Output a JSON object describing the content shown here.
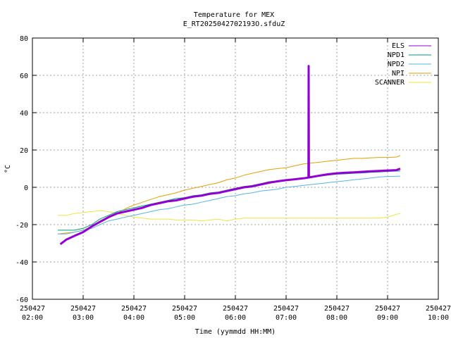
{
  "chart_data": {
    "type": "line",
    "title": "Temperature for MEX",
    "subtitle": "E_RT2025042702193O.sfduZ",
    "xlabel": "Time (yymmdd HH:MM)",
    "ylabel": "°C",
    "xlim": [
      "02:00",
      "10:00"
    ],
    "ylim": [
      -60,
      80
    ],
    "yticks": [
      -60,
      -40,
      -20,
      0,
      20,
      40,
      60,
      80
    ],
    "x_ticks": [
      {
        "hour": 2,
        "date": "250427",
        "time": "02:00"
      },
      {
        "hour": 3,
        "date": "250427",
        "time": "03:00"
      },
      {
        "hour": 4,
        "date": "250427",
        "time": "04:00"
      },
      {
        "hour": 5,
        "date": "250427",
        "time": "05:00"
      },
      {
        "hour": 6,
        "date": "250427",
        "time": "06:00"
      },
      {
        "hour": 7,
        "date": "250427",
        "time": "07:00"
      },
      {
        "hour": 8,
        "date": "250427",
        "time": "08:00"
      },
      {
        "hour": 9,
        "date": "250427",
        "time": "09:00"
      },
      {
        "hour": 10,
        "date": "250427",
        "time": "10:00"
      }
    ],
    "grid": true,
    "legend_position": "top-right",
    "series": [
      {
        "name": "ELS",
        "color": "#9400d3",
        "width": 3,
        "points": [
          [
            2.55,
            -30.5
          ],
          [
            2.67,
            -28
          ],
          [
            2.83,
            -26
          ],
          [
            3.0,
            -24
          ],
          [
            3.17,
            -21
          ],
          [
            3.33,
            -18.5
          ],
          [
            3.5,
            -16
          ],
          [
            3.67,
            -14
          ],
          [
            3.83,
            -13
          ],
          [
            4.0,
            -12
          ],
          [
            4.17,
            -11
          ],
          [
            4.33,
            -9.5
          ],
          [
            4.5,
            -8.5
          ],
          [
            4.67,
            -7.5
          ],
          [
            4.83,
            -7
          ],
          [
            5.0,
            -6
          ],
          [
            5.17,
            -5
          ],
          [
            5.33,
            -4.5
          ],
          [
            5.5,
            -3.5
          ],
          [
            5.67,
            -3
          ],
          [
            5.83,
            -2
          ],
          [
            6.0,
            -1
          ],
          [
            6.17,
            0
          ],
          [
            6.33,
            0.5
          ],
          [
            6.5,
            1.5
          ],
          [
            6.67,
            2.5
          ],
          [
            6.83,
            3.2
          ],
          [
            7.0,
            3.8
          ],
          [
            7.17,
            4.3
          ],
          [
            7.33,
            4.8
          ],
          [
            7.44,
            5.2
          ],
          [
            7.445,
            65
          ],
          [
            7.45,
            5.3
          ],
          [
            7.6,
            6
          ],
          [
            7.83,
            7
          ],
          [
            8.0,
            7.5
          ],
          [
            8.17,
            7.8
          ],
          [
            8.33,
            8
          ],
          [
            8.5,
            8.3
          ],
          [
            8.67,
            8.6
          ],
          [
            8.83,
            8.8
          ],
          [
            9.0,
            9
          ],
          [
            9.17,
            9.2
          ],
          [
            9.25,
            10
          ]
        ]
      },
      {
        "name": "NPD1",
        "color": "#009e73",
        "width": 1,
        "points": [
          [
            2.5,
            -23
          ],
          [
            2.67,
            -23
          ],
          [
            2.83,
            -23
          ],
          [
            3.0,
            -22
          ],
          [
            3.17,
            -20
          ],
          [
            3.33,
            -17
          ],
          [
            3.5,
            -15
          ],
          [
            3.67,
            -13
          ],
          [
            3.83,
            -12
          ],
          [
            4.0,
            -11
          ],
          [
            4.17,
            -10
          ],
          [
            4.33,
            -9
          ],
          [
            4.5,
            -8
          ],
          [
            4.67,
            -7
          ],
          [
            4.83,
            -6
          ],
          [
            5.0,
            -5.5
          ],
          [
            5.17,
            -4.5
          ],
          [
            5.33,
            -4
          ],
          [
            5.5,
            -3
          ],
          [
            5.67,
            -2.5
          ],
          [
            5.83,
            -1.5
          ],
          [
            6.0,
            -0.5
          ],
          [
            6.17,
            0.5
          ],
          [
            6.33,
            1
          ],
          [
            6.5,
            2
          ],
          [
            6.67,
            3
          ],
          [
            6.83,
            3.5
          ],
          [
            7.0,
            4
          ],
          [
            7.17,
            4.5
          ],
          [
            7.33,
            5
          ],
          [
            7.5,
            5.5
          ],
          [
            7.67,
            6
          ],
          [
            7.83,
            6.5
          ],
          [
            8.0,
            7
          ],
          [
            8.17,
            7.2
          ],
          [
            8.33,
            7.5
          ],
          [
            8.5,
            7.7
          ],
          [
            8.67,
            8
          ],
          [
            8.83,
            8.2
          ],
          [
            9.0,
            8.5
          ],
          [
            9.25,
            8.8
          ]
        ]
      },
      {
        "name": "NPD2",
        "color": "#56b4e9",
        "width": 1,
        "points": [
          [
            2.5,
            -25
          ],
          [
            2.67,
            -25
          ],
          [
            2.83,
            -24
          ],
          [
            3.0,
            -23
          ],
          [
            3.17,
            -22
          ],
          [
            3.33,
            -20
          ],
          [
            3.5,
            -18
          ],
          [
            3.67,
            -17
          ],
          [
            3.83,
            -16
          ],
          [
            4.0,
            -15
          ],
          [
            4.17,
            -14
          ],
          [
            4.33,
            -13
          ],
          [
            4.5,
            -12
          ],
          [
            4.67,
            -11.5
          ],
          [
            4.83,
            -10.5
          ],
          [
            5.0,
            -9.5
          ],
          [
            5.17,
            -9
          ],
          [
            5.33,
            -8
          ],
          [
            5.5,
            -7
          ],
          [
            5.67,
            -6
          ],
          [
            5.83,
            -5
          ],
          [
            6.0,
            -4.5
          ],
          [
            6.17,
            -3.5
          ],
          [
            6.33,
            -3
          ],
          [
            6.5,
            -2
          ],
          [
            6.67,
            -1.5
          ],
          [
            6.83,
            -1
          ],
          [
            7.0,
            0
          ],
          [
            7.17,
            0.5
          ],
          [
            7.33,
            1
          ],
          [
            7.5,
            1.5
          ],
          [
            7.67,
            2
          ],
          [
            7.83,
            2.5
          ],
          [
            8.0,
            3
          ],
          [
            8.17,
            3.5
          ],
          [
            8.33,
            4
          ],
          [
            8.5,
            4.5
          ],
          [
            8.67,
            5
          ],
          [
            8.83,
            5.5
          ],
          [
            9.0,
            5.8
          ],
          [
            9.25,
            6
          ]
        ]
      },
      {
        "name": "NPI",
        "color": "#e69f00",
        "width": 1,
        "points": [
          [
            2.5,
            -25
          ],
          [
            2.67,
            -24.5
          ],
          [
            2.83,
            -24
          ],
          [
            3.0,
            -23
          ],
          [
            3.17,
            -21
          ],
          [
            3.33,
            -19
          ],
          [
            3.5,
            -16.5
          ],
          [
            3.67,
            -14
          ],
          [
            3.83,
            -11.5
          ],
          [
            4.0,
            -9.5
          ],
          [
            4.17,
            -8
          ],
          [
            4.33,
            -6.5
          ],
          [
            4.5,
            -5
          ],
          [
            4.67,
            -4
          ],
          [
            4.83,
            -3
          ],
          [
            5.0,
            -1.5
          ],
          [
            5.17,
            -0.5
          ],
          [
            5.33,
            0.5
          ],
          [
            5.5,
            1.5
          ],
          [
            5.67,
            2.5
          ],
          [
            5.83,
            4
          ],
          [
            6.0,
            5
          ],
          [
            6.17,
            6.5
          ],
          [
            6.33,
            7.5
          ],
          [
            6.5,
            8.5
          ],
          [
            6.67,
            9.5
          ],
          [
            6.83,
            10
          ],
          [
            7.0,
            10.5
          ],
          [
            7.17,
            11.5
          ],
          [
            7.33,
            12.5
          ],
          [
            7.5,
            13
          ],
          [
            7.67,
            13.5
          ],
          [
            7.83,
            14
          ],
          [
            8.0,
            14.5
          ],
          [
            8.17,
            15
          ],
          [
            8.33,
            15.5
          ],
          [
            8.5,
            15.5
          ],
          [
            8.67,
            15.8
          ],
          [
            8.83,
            16
          ],
          [
            9.0,
            16
          ],
          [
            9.17,
            16.2
          ],
          [
            9.25,
            17
          ]
        ]
      },
      {
        "name": "SCANNER",
        "color": "#f0e442",
        "width": 1,
        "points": [
          [
            2.5,
            -15
          ],
          [
            2.67,
            -15
          ],
          [
            2.83,
            -14
          ],
          [
            3.0,
            -13.5
          ],
          [
            3.17,
            -13
          ],
          [
            3.33,
            -12.5
          ],
          [
            3.5,
            -13
          ],
          [
            3.67,
            -14
          ],
          [
            3.83,
            -15
          ],
          [
            4.0,
            -16
          ],
          [
            4.17,
            -16.5
          ],
          [
            4.33,
            -17
          ],
          [
            4.5,
            -17
          ],
          [
            4.67,
            -17
          ],
          [
            4.83,
            -17.5
          ],
          [
            5.0,
            -17.5
          ],
          [
            5.17,
            -17.5
          ],
          [
            5.33,
            -18
          ],
          [
            5.5,
            -17.5
          ],
          [
            5.67,
            -17
          ],
          [
            5.83,
            -18
          ],
          [
            6.0,
            -17
          ],
          [
            6.17,
            -16.5
          ],
          [
            6.33,
            -16.5
          ],
          [
            6.5,
            -16.5
          ],
          [
            6.67,
            -16.5
          ],
          [
            6.83,
            -16.5
          ],
          [
            7.0,
            -16.5
          ],
          [
            7.17,
            -16.5
          ],
          [
            7.33,
            -16.5
          ],
          [
            7.5,
            -16.5
          ],
          [
            7.67,
            -16.5
          ],
          [
            7.83,
            -16.5
          ],
          [
            8.0,
            -16.5
          ],
          [
            8.17,
            -16.5
          ],
          [
            8.33,
            -16.5
          ],
          [
            8.5,
            -16.5
          ],
          [
            8.67,
            -16.5
          ],
          [
            8.83,
            -16.5
          ],
          [
            9.0,
            -16
          ],
          [
            9.17,
            -14.5
          ],
          [
            9.25,
            -14
          ]
        ]
      }
    ]
  }
}
